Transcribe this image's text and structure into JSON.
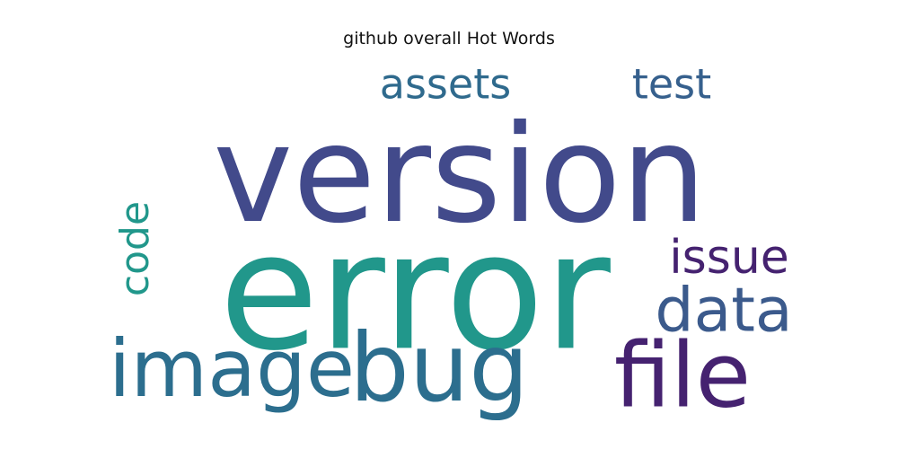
{
  "chart_data": {
    "type": "wordcloud",
    "title": "github overall Hot Words",
    "words": [
      {
        "text": "version",
        "color": "#424a8b"
      },
      {
        "text": "error",
        "color": "#21978b"
      },
      {
        "text": "image",
        "color": "#2c6e8e"
      },
      {
        "text": "bug",
        "color": "#2c6e8e"
      },
      {
        "text": "file",
        "color": "#452270"
      },
      {
        "text": "data",
        "color": "#3b5a8c"
      },
      {
        "text": "issue",
        "color": "#452270"
      },
      {
        "text": "code",
        "color": "#21978b"
      },
      {
        "text": "assets",
        "color": "#2f6a8d"
      },
      {
        "text": "test",
        "color": "#36608d"
      }
    ]
  }
}
